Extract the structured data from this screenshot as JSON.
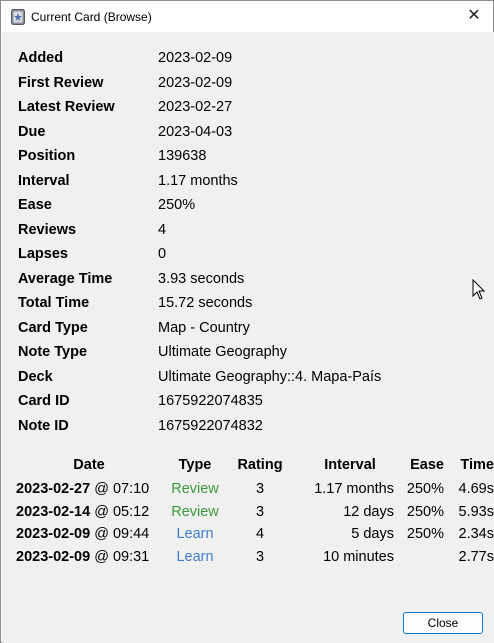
{
  "window": {
    "title": "Current Card (Browse)"
  },
  "stats": [
    {
      "label": "Added",
      "value": "2023-02-09"
    },
    {
      "label": "First Review",
      "value": "2023-02-09"
    },
    {
      "label": "Latest Review",
      "value": "2023-02-27"
    },
    {
      "label": "Due",
      "value": "2023-04-03"
    },
    {
      "label": "Position",
      "value": "139638"
    },
    {
      "label": "Interval",
      "value": "1.17 months"
    },
    {
      "label": "Ease",
      "value": "250%"
    },
    {
      "label": "Reviews",
      "value": "4"
    },
    {
      "label": "Lapses",
      "value": "0"
    },
    {
      "label": "Average Time",
      "value": "3.93 seconds"
    },
    {
      "label": "Total Time",
      "value": "15.72 seconds"
    },
    {
      "label": "Card Type",
      "value": "Map - Country"
    },
    {
      "label": "Note Type",
      "value": "Ultimate Geography"
    },
    {
      "label": "Deck",
      "value": "Ultimate Geography::4. Mapa-País"
    },
    {
      "label": "Card ID",
      "value": "1675922074835"
    },
    {
      "label": "Note ID",
      "value": "1675922074832"
    }
  ],
  "reviews": {
    "headers": {
      "date": "Date",
      "type": "Type",
      "rating": "Rating",
      "interval": "Interval",
      "ease": "Ease",
      "time": "Time"
    },
    "rows": [
      {
        "date": "2023-02-27",
        "at": " @ 07:10",
        "type": "Review",
        "rating": "3",
        "interval": "1.17 months",
        "ease": "250%",
        "time": "4.69s"
      },
      {
        "date": "2023-02-14",
        "at": " @ 05:12",
        "type": "Review",
        "rating": "3",
        "interval": "12 days",
        "ease": "250%",
        "time": "5.93s"
      },
      {
        "date": "2023-02-09",
        "at": " @ 09:44",
        "type": "Learn",
        "rating": "4",
        "interval": "5 days",
        "ease": "250%",
        "time": "2.34s"
      },
      {
        "date": "2023-02-09",
        "at": " @ 09:31",
        "type": "Learn",
        "rating": "3",
        "interval": "10 minutes",
        "ease": "",
        "time": "2.77s"
      }
    ]
  },
  "buttons": {
    "close": "Close"
  },
  "colors": {
    "review": "#3a9a3a",
    "learn": "#3e7ec8",
    "accent": "#0078d4"
  }
}
